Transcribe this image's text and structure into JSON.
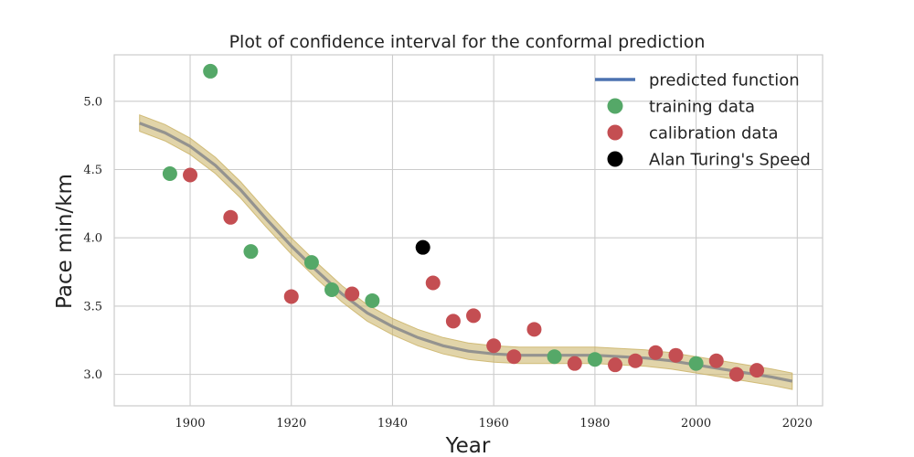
{
  "chart_data": {
    "type": "scatter",
    "title": "Plot of confidence interval for the conformal prediction",
    "xlabel": "Year",
    "ylabel": "Pace min/km",
    "xlim": [
      1885,
      2025
    ],
    "ylim": [
      2.77,
      5.34
    ],
    "xticks": [
      1900,
      1920,
      1940,
      1960,
      1980,
      2000,
      2020
    ],
    "yticks": [
      3.0,
      3.5,
      4.0,
      4.5,
      5.0
    ],
    "xtick_labels": [
      "1900",
      "1920",
      "1940",
      "1960",
      "1980",
      "2000",
      "2020"
    ],
    "ytick_labels": [
      "3.0",
      "3.5",
      "4.0",
      "4.5",
      "5.0"
    ],
    "grid": true,
    "legend_position": "top-right",
    "series": [
      {
        "name": "predicted function",
        "kind": "line",
        "color": "#4c72b0",
        "x": [
          1890,
          1895,
          1900,
          1905,
          1910,
          1915,
          1920,
          1925,
          1930,
          1935,
          1940,
          1945,
          1950,
          1955,
          1960,
          1965,
          1970,
          1975,
          1980,
          1985,
          1990,
          1995,
          2000,
          2005,
          2010,
          2015,
          2019
        ],
        "y": [
          4.84,
          4.77,
          4.67,
          4.53,
          4.35,
          4.14,
          3.94,
          3.76,
          3.59,
          3.45,
          3.35,
          3.27,
          3.21,
          3.17,
          3.15,
          3.14,
          3.14,
          3.14,
          3.14,
          3.13,
          3.12,
          3.1,
          3.07,
          3.04,
          3.01,
          2.98,
          2.95
        ]
      },
      {
        "name": "training data",
        "kind": "scatter",
        "color": "#55a868",
        "x": [
          1896,
          1904,
          1912,
          1924,
          1928,
          1936,
          1972,
          1980,
          2000
        ],
        "y": [
          4.47,
          5.22,
          3.9,
          3.82,
          3.62,
          3.54,
          3.13,
          3.11,
          3.08
        ]
      },
      {
        "name": "calibration data",
        "kind": "scatter",
        "color": "#c44e52",
        "x": [
          1900,
          1908,
          1920,
          1932,
          1948,
          1952,
          1956,
          1960,
          1964,
          1968,
          1976,
          1984,
          1988,
          1992,
          1996,
          2004,
          2008,
          2012
        ],
        "y": [
          4.46,
          4.15,
          3.57,
          3.59,
          3.67,
          3.39,
          3.43,
          3.21,
          3.13,
          3.33,
          3.08,
          3.07,
          3.1,
          3.16,
          3.14,
          3.1,
          3.0,
          3.03
        ]
      },
      {
        "name": "Alan Turing's Speed",
        "kind": "scatter",
        "color": "#000000",
        "x": [
          1946
        ],
        "y": [
          3.93
        ]
      }
    ],
    "confidence_band": {
      "color": "#c9b062",
      "half_width": 0.06
    }
  }
}
